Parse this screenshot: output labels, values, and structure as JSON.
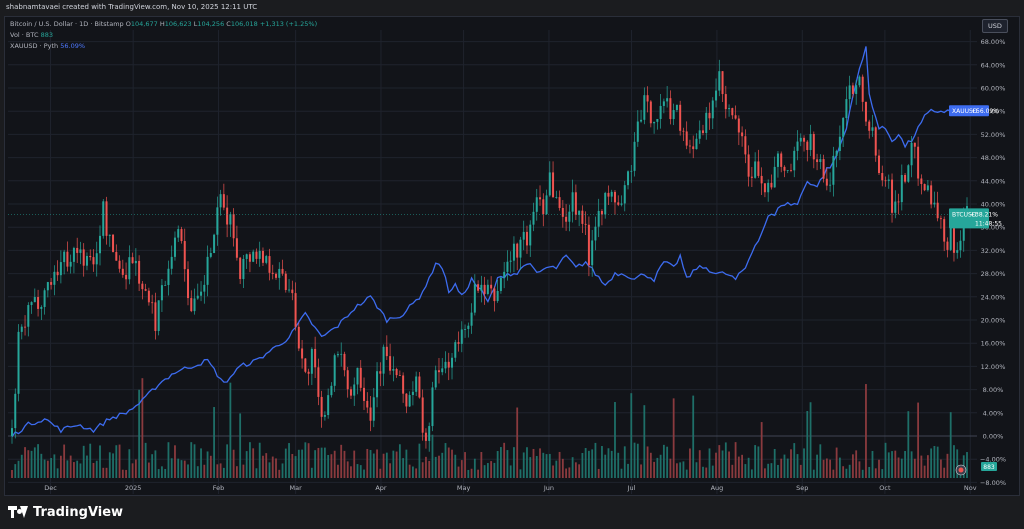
{
  "header": {
    "credit": "shabnamtavaei created with TradingView.com, Nov 10, 2025 12:11 UTC"
  },
  "legend": {
    "symbol": "Bitcoin / U.S. Dollar · 1D · Bitstamp",
    "o_label": "O",
    "o_value": "104,677",
    "h_label": "H",
    "h_value": "106,623",
    "l_label": "L",
    "l_value": "104,256",
    "c_label": "C",
    "c_value": "106,018",
    "change": "+1,313 (+1.25%)",
    "vol_label": "Vol · BTC",
    "vol_value": "883",
    "compare_label": "XAUUSD · Pyth",
    "compare_value": "56.09%"
  },
  "currency_button": "USD",
  "footer": {
    "brand": "TradingView"
  },
  "chart_data": {
    "type": "candlestick-percent-compare",
    "x_axis_labels": [
      "Dec",
      "2025",
      "Feb",
      "Mar",
      "Apr",
      "May",
      "Jun",
      "Jul",
      "Aug",
      "Sep",
      "Oct",
      "Nov"
    ],
    "y_axis_ticks": [
      -8,
      -4,
      0,
      4,
      8,
      12,
      16,
      20,
      24,
      28,
      32,
      36,
      40,
      44,
      48,
      52,
      56,
      60,
      64,
      68
    ],
    "y_axis_labels": [
      "−8.00%",
      "−4.00%",
      "0.00%",
      "4.00%",
      "8.00%",
      "12.00%",
      "16.00%",
      "20.00%",
      "24.00%",
      "28.00%",
      "32.00%",
      "36.00%",
      "40.00%",
      "44.00%",
      "48.00%",
      "52.00%",
      "56.00%",
      "60.00%",
      "64.00%",
      "68.00%"
    ],
    "ylim": [
      -10,
      70
    ],
    "grid": true,
    "price_labels": {
      "btc": {
        "name": "BTCUSD",
        "value": "+38.21%",
        "countdown": "11:48:55",
        "color": "#26a69a"
      },
      "gold": {
        "name": "XAUUSD",
        "value": "+56.09%",
        "color": "#3d6cf0"
      }
    },
    "volume_badge": "883",
    "btc_key_points": [
      [
        0,
        0
      ],
      [
        2,
        16
      ],
      [
        5,
        21
      ],
      [
        10,
        25
      ],
      [
        15,
        30
      ],
      [
        20,
        32
      ],
      [
        25,
        29
      ],
      [
        28,
        39
      ],
      [
        30,
        33
      ],
      [
        34,
        28
      ],
      [
        37,
        31
      ],
      [
        41,
        24
      ],
      [
        44,
        20
      ],
      [
        48,
        30
      ],
      [
        50,
        35
      ],
      [
        52,
        34
      ],
      [
        55,
        21
      ],
      [
        58,
        24
      ],
      [
        62,
        35
      ],
      [
        64,
        40
      ],
      [
        67,
        37
      ],
      [
        70,
        29
      ],
      [
        74,
        32
      ],
      [
        79,
        30
      ],
      [
        83,
        27
      ],
      [
        86,
        25
      ],
      [
        88,
        16
      ],
      [
        90,
        10
      ],
      [
        92,
        14
      ],
      [
        95,
        2
      ],
      [
        96,
        5
      ],
      [
        99,
        13
      ],
      [
        102,
        12
      ],
      [
        104,
        7
      ],
      [
        106,
        12
      ],
      [
        108,
        8
      ],
      [
        110,
        4
      ],
      [
        112,
        11
      ],
      [
        114,
        14
      ],
      [
        118,
        10
      ],
      [
        121,
        6
      ],
      [
        124,
        9
      ],
      [
        127,
        -2
      ],
      [
        129,
        8
      ],
      [
        131,
        11
      ],
      [
        134,
        13
      ],
      [
        139,
        18
      ],
      [
        142,
        25
      ],
      [
        148,
        24
      ],
      [
        152,
        30
      ],
      [
        156,
        33
      ],
      [
        159,
        35
      ],
      [
        161,
        42
      ],
      [
        163,
        40
      ],
      [
        165,
        45
      ],
      [
        167,
        41
      ],
      [
        169,
        37
      ],
      [
        172,
        41
      ],
      [
        175,
        38
      ],
      [
        177,
        31
      ],
      [
        179,
        38
      ],
      [
        181,
        40
      ],
      [
        184,
        41
      ],
      [
        187,
        40
      ],
      [
        190,
        47
      ],
      [
        192,
        53
      ],
      [
        194,
        57
      ],
      [
        197,
        55
      ],
      [
        200,
        57
      ],
      [
        204,
        56
      ],
      [
        207,
        51
      ],
      [
        210,
        50
      ],
      [
        213,
        54
      ],
      [
        215,
        58
      ],
      [
        217,
        61
      ],
      [
        219,
        56
      ],
      [
        222,
        54
      ],
      [
        224,
        50
      ],
      [
        226,
        45
      ],
      [
        229,
        46
      ],
      [
        232,
        42
      ],
      [
        235,
        47
      ],
      [
        238,
        45
      ],
      [
        241,
        49
      ],
      [
        243,
        51
      ],
      [
        245,
        51
      ],
      [
        247,
        48
      ],
      [
        249,
        45
      ],
      [
        251,
        43
      ],
      [
        253,
        50
      ],
      [
        255,
        55
      ],
      [
        257,
        60
      ],
      [
        260,
        62
      ],
      [
        262,
        56
      ],
      [
        264,
        52
      ],
      [
        266,
        47
      ],
      [
        268,
        45
      ],
      [
        270,
        40
      ],
      [
        272,
        42
      ],
      [
        274,
        45
      ],
      [
        276,
        50
      ],
      [
        278,
        46
      ],
      [
        280,
        44
      ],
      [
        282,
        41
      ],
      [
        284,
        39
      ],
      [
        286,
        33
      ],
      [
        288,
        35
      ],
      [
        290,
        32
      ],
      [
        292,
        38
      ]
    ],
    "gold_key_points": [
      [
        0,
        0
      ],
      [
        5,
        2
      ],
      [
        10,
        3
      ],
      [
        15,
        1
      ],
      [
        20,
        2
      ],
      [
        25,
        1
      ],
      [
        30,
        3
      ],
      [
        35,
        4
      ],
      [
        40,
        6
      ],
      [
        45,
        9
      ],
      [
        50,
        11
      ],
      [
        55,
        12
      ],
      [
        60,
        13
      ],
      [
        65,
        9
      ],
      [
        70,
        12
      ],
      [
        75,
        13
      ],
      [
        80,
        15
      ],
      [
        85,
        17
      ],
      [
        90,
        21
      ],
      [
        95,
        17
      ],
      [
        100,
        19
      ],
      [
        105,
        22
      ],
      [
        110,
        24
      ],
      [
        115,
        20
      ],
      [
        120,
        21
      ],
      [
        125,
        24
      ],
      [
        128,
        27
      ],
      [
        130,
        30
      ],
      [
        132,
        29
      ],
      [
        134,
        25
      ],
      [
        136,
        26
      ],
      [
        138,
        24
      ],
      [
        141,
        27
      ],
      [
        144,
        25
      ],
      [
        146,
        23
      ],
      [
        149,
        27
      ],
      [
        152,
        28
      ],
      [
        155,
        28
      ],
      [
        158,
        30
      ],
      [
        161,
        28
      ],
      [
        164,
        29
      ],
      [
        167,
        29
      ],
      [
        170,
        31
      ],
      [
        173,
        29
      ],
      [
        176,
        30
      ],
      [
        179,
        28
      ],
      [
        182,
        26
      ],
      [
        185,
        28
      ],
      [
        188,
        28
      ],
      [
        191,
        27
      ],
      [
        194,
        28
      ],
      [
        197,
        27
      ],
      [
        200,
        30
      ],
      [
        203,
        29
      ],
      [
        205,
        31
      ],
      [
        207,
        27
      ],
      [
        210,
        29
      ],
      [
        213,
        29
      ],
      [
        216,
        28
      ],
      [
        219,
        28
      ],
      [
        222,
        27
      ],
      [
        225,
        29
      ],
      [
        228,
        33
      ],
      [
        230,
        35
      ],
      [
        232,
        38
      ],
      [
        234,
        38
      ],
      [
        236,
        40
      ],
      [
        238,
        40
      ],
      [
        241,
        40
      ],
      [
        244,
        44
      ],
      [
        247,
        43
      ],
      [
        250,
        46
      ],
      [
        252,
        47
      ],
      [
        254,
        50
      ],
      [
        256,
        53
      ],
      [
        258,
        59
      ],
      [
        260,
        63
      ],
      [
        262,
        67
      ],
      [
        263,
        59
      ],
      [
        264,
        57
      ],
      [
        266,
        53
      ],
      [
        268,
        53
      ],
      [
        270,
        51
      ],
      [
        272,
        52
      ],
      [
        274,
        50
      ],
      [
        276,
        51
      ],
      [
        278,
        53
      ],
      [
        280,
        55
      ],
      [
        282,
        56
      ]
    ]
  }
}
